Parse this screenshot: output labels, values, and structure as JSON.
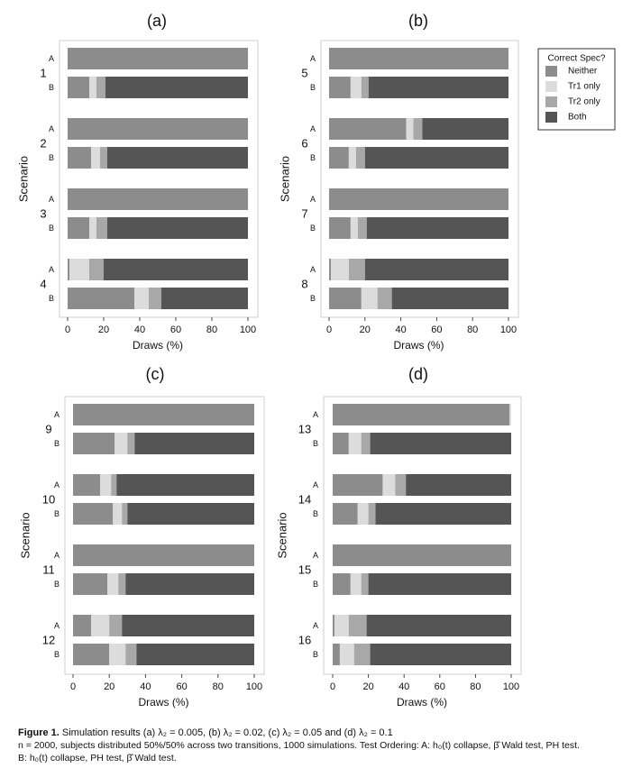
{
  "chart_data": [
    {
      "type": "bar",
      "panel_label": "(a)",
      "orientation": "horizontal-stacked",
      "ylabel": "Scenario",
      "xlabel": "Draws (%)",
      "xlim": [
        0,
        100
      ],
      "xticks": [
        "0",
        "20",
        "40",
        "60",
        "80",
        "100"
      ],
      "scenarios": [
        {
          "label": "1",
          "rows": [
            {
              "order": "A",
              "neither": 100,
              "tr1": 0,
              "tr2": 0,
              "both": 0
            },
            {
              "order": "B",
              "neither": 12,
              "tr1": 4,
              "tr2": 5,
              "both": 79
            }
          ]
        },
        {
          "label": "2",
          "rows": [
            {
              "order": "A",
              "neither": 100,
              "tr1": 0,
              "tr2": 0,
              "both": 0
            },
            {
              "order": "B",
              "neither": 13,
              "tr1": 5,
              "tr2": 4,
              "both": 78
            }
          ]
        },
        {
          "label": "3",
          "rows": [
            {
              "order": "A",
              "neither": 100,
              "tr1": 0,
              "tr2": 0,
              "both": 0
            },
            {
              "order": "B",
              "neither": 12,
              "tr1": 4,
              "tr2": 6,
              "both": 78
            }
          ]
        },
        {
          "label": "4",
          "rows": [
            {
              "order": "A",
              "neither": 1,
              "tr1": 11,
              "tr2": 8,
              "both": 80
            },
            {
              "order": "B",
              "neither": 37,
              "tr1": 8,
              "tr2": 7,
              "both": 48
            }
          ]
        }
      ]
    },
    {
      "type": "bar",
      "panel_label": "(b)",
      "orientation": "horizontal-stacked",
      "ylabel": "Scenario",
      "xlabel": "Draws (%)",
      "xlim": [
        0,
        100
      ],
      "xticks": [
        "0",
        "20",
        "40",
        "60",
        "80",
        "100"
      ],
      "scenarios": [
        {
          "label": "5",
          "rows": [
            {
              "order": "A",
              "neither": 100,
              "tr1": 0,
              "tr2": 0,
              "both": 0
            },
            {
              "order": "B",
              "neither": 12,
              "tr1": 6,
              "tr2": 4,
              "both": 78
            }
          ]
        },
        {
          "label": "6",
          "rows": [
            {
              "order": "A",
              "neither": 43,
              "tr1": 4,
              "tr2": 5,
              "both": 48
            },
            {
              "order": "B",
              "neither": 11,
              "tr1": 4,
              "tr2": 5,
              "both": 80
            }
          ]
        },
        {
          "label": "7",
          "rows": [
            {
              "order": "A",
              "neither": 100,
              "tr1": 0,
              "tr2": 0,
              "both": 0
            },
            {
              "order": "B",
              "neither": 12,
              "tr1": 4,
              "tr2": 5,
              "both": 79
            }
          ]
        },
        {
          "label": "8",
          "rows": [
            {
              "order": "A",
              "neither": 1,
              "tr1": 10,
              "tr2": 9,
              "both": 80
            },
            {
              "order": "B",
              "neither": 18,
              "tr1": 9,
              "tr2": 8,
              "both": 65
            }
          ]
        }
      ]
    },
    {
      "type": "bar",
      "panel_label": "(c)",
      "orientation": "horizontal-stacked",
      "ylabel": "Scenario",
      "xlabel": "Draws (%)",
      "xlim": [
        0,
        100
      ],
      "xticks": [
        "0",
        "20",
        "40",
        "60",
        "80",
        "100"
      ],
      "scenarios": [
        {
          "label": "9",
          "rows": [
            {
              "order": "A",
              "neither": 100,
              "tr1": 0,
              "tr2": 0,
              "both": 0
            },
            {
              "order": "B",
              "neither": 23,
              "tr1": 7,
              "tr2": 4,
              "both": 66
            }
          ]
        },
        {
          "label": "10",
          "rows": [
            {
              "order": "A",
              "neither": 15,
              "tr1": 6,
              "tr2": 3,
              "both": 76
            },
            {
              "order": "B",
              "neither": 22,
              "tr1": 5,
              "tr2": 3,
              "both": 70
            }
          ]
        },
        {
          "label": "11",
          "rows": [
            {
              "order": "A",
              "neither": 100,
              "tr1": 0,
              "tr2": 0,
              "both": 0
            },
            {
              "order": "B",
              "neither": 19,
              "tr1": 6,
              "tr2": 4,
              "both": 71
            }
          ]
        },
        {
          "label": "12",
          "rows": [
            {
              "order": "A",
              "neither": 10,
              "tr1": 10,
              "tr2": 7,
              "both": 73
            },
            {
              "order": "B",
              "neither": 20,
              "tr1": 9,
              "tr2": 6,
              "both": 65
            }
          ]
        }
      ]
    },
    {
      "type": "bar",
      "panel_label": "(d)",
      "orientation": "horizontal-stacked",
      "ylabel": "Scenario",
      "xlabel": "Draws (%)",
      "xlim": [
        0,
        100
      ],
      "xticks": [
        "0",
        "20",
        "40",
        "60",
        "80",
        "100"
      ],
      "scenarios": [
        {
          "label": "13",
          "rows": [
            {
              "order": "A",
              "neither": 99,
              "tr1": 1,
              "tr2": 0,
              "both": 0
            },
            {
              "order": "B",
              "neither": 9,
              "tr1": 7,
              "tr2": 5,
              "both": 79
            }
          ]
        },
        {
          "label": "14",
          "rows": [
            {
              "order": "A",
              "neither": 28,
              "tr1": 7,
              "tr2": 6,
              "both": 59
            },
            {
              "order": "B",
              "neither": 14,
              "tr1": 6,
              "tr2": 4,
              "both": 76
            }
          ]
        },
        {
          "label": "15",
          "rows": [
            {
              "order": "A",
              "neither": 100,
              "tr1": 0,
              "tr2": 0,
              "both": 0
            },
            {
              "order": "B",
              "neither": 10,
              "tr1": 6,
              "tr2": 4,
              "both": 80
            }
          ]
        },
        {
          "label": "16",
          "rows": [
            {
              "order": "A",
              "neither": 1,
              "tr1": 8,
              "tr2": 10,
              "both": 81
            },
            {
              "order": "B",
              "neither": 4,
              "tr1": 8,
              "tr2": 9,
              "both": 79
            }
          ]
        }
      ]
    }
  ],
  "legend": {
    "title": "Correct Spec?",
    "placement": "top-right",
    "items": [
      {
        "key": "neither",
        "label": "Neither",
        "color": "#8c8c8c"
      },
      {
        "key": "tr1",
        "label": "Tr1 only",
        "color": "#dcdcdc"
      },
      {
        "key": "tr2",
        "label": "Tr2 only",
        "color": "#a8a8a8"
      },
      {
        "key": "both",
        "label": "Both",
        "color": "#555555"
      }
    ]
  },
  "caption": {
    "figure_label": "Figure 1.",
    "line1": "Simulation results (a) λ₂ = 0.005, (b) λ₂ = 0.02, (c) λ₂ = 0.05 and (d) λ₂ = 0.1",
    "line2": "n = 2000, subjects distributed 50%/50% across two transitions, 1000 simulations. Test Ordering: A: h₀(t) collapse, β̂ Wald test, PH test.",
    "line3": "B: h₀(t) collapse, PH test, β̂ Wald test."
  }
}
